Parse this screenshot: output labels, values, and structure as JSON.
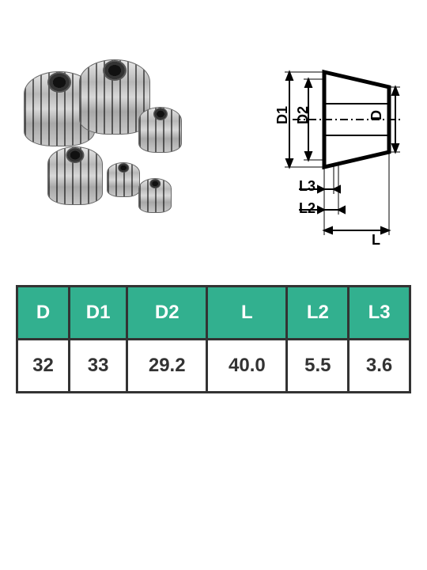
{
  "table": {
    "type": "table",
    "header_bg": "#32b08f",
    "header_color": "#ffffff",
    "border_color": "#333333",
    "columns": [
      "D",
      "D1",
      "D2",
      "L",
      "L2",
      "L3"
    ],
    "rows": [
      [
        "32",
        "33",
        "29.2",
        "40.0",
        "5.5",
        "3.6"
      ]
    ],
    "font_size": 24
  },
  "diagram": {
    "labels": {
      "D": "D",
      "D1": "D1",
      "D2": "D2",
      "L": "L",
      "L2": "L2",
      "L3": "L3"
    },
    "stroke": "#000000",
    "stroke_width": 2
  },
  "background_color": "#ffffff"
}
